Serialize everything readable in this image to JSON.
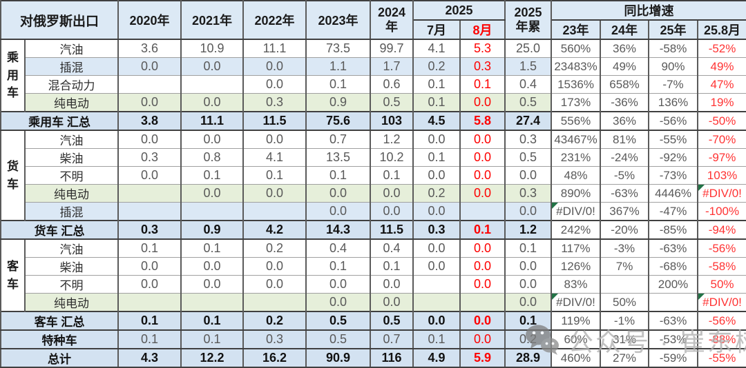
{
  "header": {
    "title": "对俄罗斯出口",
    "years": [
      "2020年",
      "2021年",
      "2022年",
      "2023年"
    ],
    "y2024": [
      "2024",
      "年"
    ],
    "y2025_group": "2025",
    "jul": "7月",
    "aug": "8月",
    "cum2025": [
      "2025",
      "年累"
    ],
    "yoy_group": "同比增速",
    "yoy_cols": [
      "23年",
      "24年",
      "25年",
      "25.8月"
    ]
  },
  "colors": {
    "header_bg": "#dce9f5",
    "blue_row_bg": "#dbe8f5",
    "green_row_bg": "#e6efda",
    "subtotal_row_bg": "#d3e2f1",
    "value_text": "#595959",
    "red_text": "#fe0000",
    "error_triangle_green": "#217346",
    "border_dark": "#3f3f3f"
  },
  "watermark": {
    "icon": "wechat-icon",
    "text": "公众号 · 崔东树"
  },
  "chart_data": {
    "type": "table",
    "title": "对俄罗斯出口",
    "columns": [
      "2020年",
      "2021年",
      "2022年",
      "2023年",
      "2024年",
      "2025 7月",
      "2025 8月",
      "2025年累",
      "同比增速 23年",
      "同比增速 24年",
      "同比增速 25年",
      "同比增速 25.8月"
    ],
    "rows": [
      {
        "group": "乘用车",
        "groupSpan": 4,
        "label": "汽油",
        "bg": "white",
        "vals": [
          "3.6",
          "10.9",
          "11.1",
          "73.5",
          "99.7",
          "4.1",
          "5.3",
          "25.0"
        ],
        "growth": [
          "560%",
          "36%",
          "-58%",
          "-52%"
        ]
      },
      {
        "label": "插混",
        "bg": "blue",
        "vals": [
          "0.0",
          "0.0",
          "0.0",
          "1.1",
          "1.7",
          "0.2",
          "0.3",
          "1.5"
        ],
        "growth": [
          "23483%",
          "49%",
          "90%",
          "49%"
        ]
      },
      {
        "label": "混合动力",
        "bg": "white",
        "vals": [
          "",
          "",
          "0.0",
          "0.1",
          "0.6",
          "0.1",
          "0.1",
          "0.4"
        ],
        "growth": [
          "1536%",
          "658%",
          "-7%",
          "47%"
        ]
      },
      {
        "label": "纯电动",
        "bg": "green",
        "vals": [
          "0.0",
          "0.0",
          "0.3",
          "0.9",
          "0.5",
          "0.1",
          "0.0",
          "0.5"
        ],
        "growth": [
          "173%",
          "-36%",
          "136%",
          "19%"
        ]
      },
      {
        "type": "subtotal",
        "label": "乘用车 汇总",
        "vals": [
          "3.8",
          "11.1",
          "11.5",
          "75.6",
          "103",
          "4.5",
          "5.8",
          "27.4"
        ],
        "growth": [
          "556%",
          "36%",
          "-56%",
          "-50%"
        ]
      },
      {
        "group": "货车",
        "groupSpan": 5,
        "label": "汽油",
        "bg": "white",
        "vals": [
          "0.0",
          "0.0",
          "0.0",
          "0.7",
          "1.2",
          "0.0",
          "0.0",
          "0.3"
        ],
        "growth": [
          "43467%",
          "81%",
          "-55%",
          "-70%"
        ]
      },
      {
        "label": "柴油",
        "bg": "white",
        "vals": [
          "0.3",
          "0.8",
          "4.1",
          "13.5",
          "10.2",
          "0.1",
          "0.0",
          "0.5"
        ],
        "growth": [
          "231%",
          "-24%",
          "-92%",
          "-97%"
        ]
      },
      {
        "label": "不明",
        "bg": "white",
        "vals": [
          "0.0",
          "0.1",
          "0.1",
          "0.1",
          "0.1",
          "0.0",
          "0.0",
          "0.0"
        ],
        "growth": [
          "48%",
          "-5%",
          "-73%",
          "103%"
        ]
      },
      {
        "label": "纯电动",
        "bg": "green",
        "vals": [
          "",
          "0.0",
          "0.0",
          "0.0",
          "0.0",
          "0.2",
          "0.0",
          "0.3"
        ],
        "growth": [
          "890%",
          "-63%",
          "4446%",
          "#DIV/0!"
        ],
        "err": [
          3
        ]
      },
      {
        "label": "插混",
        "bg": "blue",
        "vals": [
          "",
          "",
          "",
          "0.0",
          "0.0",
          "0.0",
          "",
          "0.0"
        ],
        "growth": [
          "#DIV/0!",
          "367%",
          "-47%",
          "-100%"
        ],
        "err": [
          0
        ]
      },
      {
        "type": "subtotal",
        "label": "货车 汇总",
        "vals": [
          "0.3",
          "0.9",
          "4.2",
          "14.3",
          "11.5",
          "0.3",
          "0.1",
          "1.2"
        ],
        "growth": [
          "242%",
          "-20%",
          "-85%",
          "-94%"
        ]
      },
      {
        "group": "客车",
        "groupSpan": 4,
        "label": "汽油",
        "bg": "white",
        "vals": [
          "0.1",
          "0.1",
          "0.2",
          "0.4",
          "0.4",
          "0.0",
          "0.0",
          "0.1"
        ],
        "growth": [
          "117%",
          "-3%",
          "-63%",
          "-56%"
        ]
      },
      {
        "label": "柴油",
        "bg": "white",
        "vals": [
          "0.0",
          "0.0",
          "0.0",
          "0.1",
          "0.1",
          "0.0",
          "0.0",
          "0.0"
        ],
        "growth": [
          "126%",
          "7%",
          "-68%",
          "-58%"
        ]
      },
      {
        "label": "不明",
        "bg": "white",
        "vals": [
          "0.0",
          "0.0",
          "0.0",
          "0.0",
          "0.0",
          "",
          "0.0",
          "0.0"
        ],
        "growth": [
          "83%",
          "",
          "200%",
          "50%"
        ]
      },
      {
        "label": "纯电动",
        "bg": "green",
        "vals": [
          "",
          "",
          "",
          "0.0",
          "0.0",
          "",
          "",
          "0.0"
        ],
        "growth": [
          "#DIV/0!",
          "50%",
          "",
          "#DIV/0!"
        ],
        "err": [
          0,
          3
        ]
      },
      {
        "type": "subtotal",
        "label": "客车 汇总",
        "vals": [
          "0.1",
          "0.1",
          "0.2",
          "0.5",
          "0.5",
          "0.0",
          "0.0",
          "0.1"
        ],
        "growth": [
          "119%",
          "-1%",
          "-63%",
          "-56%"
        ]
      },
      {
        "type": "special",
        "label": "特种车",
        "vals": [
          "0.1",
          "0.1",
          "0.3",
          "0.5",
          "0.7",
          "0.1",
          "0.0",
          "0.2"
        ],
        "growth": [
          "60%",
          "31%",
          "-53%",
          "-88%"
        ]
      },
      {
        "type": "grand",
        "label": "总计",
        "vals": [
          "4.3",
          "12.2",
          "16.2",
          "90.9",
          "116",
          "4.9",
          "5.9",
          "28.9"
        ],
        "growth": [
          "460%",
          "27%",
          "-59%",
          "-55%"
        ]
      }
    ]
  }
}
